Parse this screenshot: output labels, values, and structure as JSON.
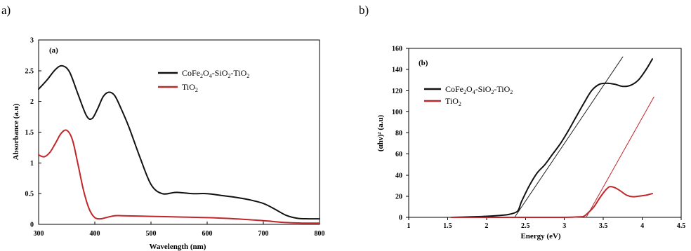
{
  "colors": {
    "black_series": "#111111",
    "red_series": "#c0262a",
    "fit_line": "#222222",
    "axis": "#000000"
  },
  "chart_data": [
    {
      "type": "line",
      "panel_letter": "a)",
      "inner_label": "(a)",
      "xlabel": "Wavelength (nm)",
      "ylabel": "Absorbance (a.u)",
      "xlim": [
        300,
        800
      ],
      "ylim": [
        0,
        3
      ],
      "xticks": [
        "300",
        "400",
        "500",
        "600",
        "700",
        "800"
      ],
      "yticks": [
        "0",
        "0.5",
        "1",
        "1.5",
        "2",
        "2.5",
        "3"
      ],
      "xtick_values": [
        300,
        400,
        500,
        600,
        700,
        800
      ],
      "ytick_values": [
        0,
        0.5,
        1,
        1.5,
        2,
        2.5,
        3
      ],
      "grid": false,
      "legend_position": "top-right",
      "legend": [
        {
          "parts": [
            [
              "CoFe",
              "n"
            ],
            [
              "2",
              "sub"
            ],
            [
              "O",
              "n"
            ],
            [
              "4",
              "sub"
            ],
            [
              "-SiO",
              "n"
            ],
            [
              "2",
              "sub"
            ],
            [
              "-TiO",
              "n"
            ],
            [
              "2",
              "sub"
            ]
          ],
          "color": "#111111"
        },
        {
          "parts": [
            [
              "TiO",
              "n"
            ],
            [
              "2",
              "sub"
            ]
          ],
          "color": "#c0262a"
        }
      ],
      "series": [
        {
          "color": "#111111",
          "x": [
            300,
            315,
            330,
            342,
            355,
            370,
            385,
            395,
            405,
            415,
            425,
            435,
            445,
            460,
            480,
            500,
            520,
            545,
            575,
            600,
            625,
            650,
            675,
            700,
            720,
            740,
            760,
            780,
            800
          ],
          "y": [
            2.2,
            2.35,
            2.52,
            2.58,
            2.48,
            2.12,
            1.77,
            1.72,
            1.88,
            2.08,
            2.15,
            2.1,
            1.92,
            1.6,
            1.1,
            0.65,
            0.5,
            0.52,
            0.5,
            0.5,
            0.47,
            0.44,
            0.4,
            0.34,
            0.25,
            0.15,
            0.1,
            0.09,
            0.09
          ]
        },
        {
          "color": "#c0262a",
          "x": [
            300,
            310,
            320,
            330,
            340,
            350,
            360,
            370,
            380,
            390,
            400,
            410,
            420,
            435,
            450,
            500,
            550,
            600,
            650,
            700,
            740,
            770,
            800
          ],
          "y": [
            1.13,
            1.1,
            1.17,
            1.32,
            1.48,
            1.53,
            1.38,
            0.98,
            0.55,
            0.25,
            0.11,
            0.09,
            0.11,
            0.14,
            0.14,
            0.13,
            0.12,
            0.11,
            0.09,
            0.06,
            0.03,
            0.02,
            0.02
          ]
        }
      ]
    },
    {
      "type": "line",
      "panel_letter": "b)",
      "inner_label": "(b)",
      "xlabel": "Energy (eV)",
      "ylabel": "(αhν)² (a.u)",
      "xlim": [
        1,
        4.5
      ],
      "ylim": [
        0,
        160
      ],
      "xticks": [
        "1",
        "1.5",
        "2",
        "2.5",
        "3",
        "3.5",
        "4",
        "4.5"
      ],
      "yticks": [
        "0",
        "20",
        "40",
        "60",
        "80",
        "100",
        "120",
        "140",
        "160"
      ],
      "xtick_values": [
        1,
        1.5,
        2,
        2.5,
        3,
        3.5,
        4,
        4.5
      ],
      "ytick_values": [
        0,
        20,
        40,
        60,
        80,
        100,
        120,
        140,
        160
      ],
      "grid": false,
      "legend_position": "top-left",
      "legend": [
        {
          "parts": [
            [
              "CoFe",
              "n"
            ],
            [
              "2",
              "sub"
            ],
            [
              "O",
              "n"
            ],
            [
              "4",
              "sub"
            ],
            [
              "-SiO",
              "n"
            ],
            [
              "2",
              "sub"
            ],
            [
              "-TiO",
              "n"
            ],
            [
              "2",
              "sub"
            ]
          ],
          "color": "#111111"
        },
        {
          "parts": [
            [
              "TiO",
              "n"
            ],
            [
              "2",
              "sub"
            ]
          ],
          "color": "#c0262a"
        }
      ],
      "series": [
        {
          "color": "#111111",
          "x": [
            1.55,
            1.8,
            2.0,
            2.2,
            2.3,
            2.4,
            2.45,
            2.55,
            2.65,
            2.75,
            2.85,
            2.95,
            3.05,
            3.15,
            3.25,
            3.35,
            3.45,
            3.55,
            3.65,
            3.75,
            3.85,
            3.95,
            4.05,
            4.13
          ],
          "y": [
            0,
            0.5,
            1,
            2,
            3,
            6,
            15,
            30,
            42,
            50,
            60,
            70,
            82,
            95,
            108,
            120,
            126,
            127,
            126,
            124,
            125,
            130,
            140,
            150
          ]
        },
        {
          "color": "#222222",
          "x": [
            2.36,
            3.75
          ],
          "y": [
            0,
            152
          ]
        },
        {
          "color": "#c0262a",
          "x": [
            1.55,
            2.0,
            2.5,
            3.0,
            3.2,
            3.25,
            3.3,
            3.38,
            3.45,
            3.52,
            3.58,
            3.65,
            3.72,
            3.8,
            3.88,
            3.95,
            4.05,
            4.13
          ],
          "y": [
            0,
            0,
            0,
            0,
            0.5,
            1,
            4,
            10,
            18,
            25,
            29,
            28,
            25,
            21,
            19.5,
            20,
            21,
            22.5
          ]
        },
        {
          "color": "#c0262a",
          "x": [
            3.28,
            4.15
          ],
          "y": [
            0,
            114
          ]
        }
      ]
    }
  ]
}
